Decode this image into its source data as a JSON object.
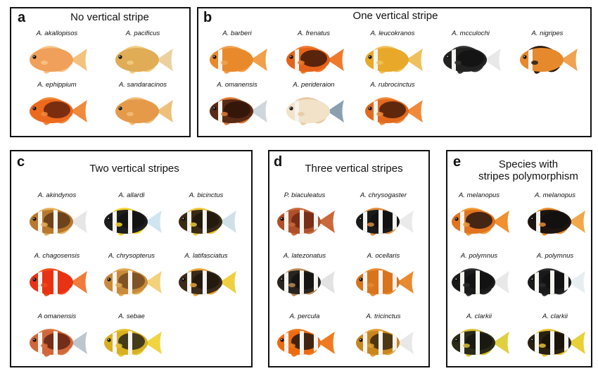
{
  "panels": [
    {
      "label": "a",
      "title": "No vertical stripe",
      "species": [
        {
          "name": "A. akallopisos",
          "body": "#f0a05a",
          "tail": "#f3c27c",
          "fins": "#f6c68a",
          "stripes": 0,
          "dark": ""
        },
        {
          "name": "A. pacificus",
          "body": "#e0ac55",
          "tail": "#ecd1a0",
          "fins": "#f0cf86",
          "stripes": 0,
          "dark": ""
        },
        {
          "name": "A. ephippium",
          "body": "#ec6a1e",
          "tail": "#f08a3c",
          "fins": "#f08a3c",
          "stripes": 0,
          "dark": "#5a1c0c"
        },
        {
          "name": "A. sandaracinos",
          "body": "#e59a4a",
          "tail": "#eec07c",
          "fins": "#f1be7a",
          "stripes": 0,
          "dark": ""
        }
      ]
    },
    {
      "label": "b",
      "title": "One vertical stripe",
      "species": [
        {
          "name": "A. barberi",
          "body": "#e88a2c",
          "tail": "#f0a04a",
          "fins": "#f3a24e",
          "stripes": 1,
          "dark": ""
        },
        {
          "name": "A. frenatus",
          "body": "#e5621a",
          "tail": "#f07a2a",
          "fins": "#f07a2a",
          "stripes": 1,
          "dark": "#331208"
        },
        {
          "name": "A. leucokranos",
          "body": "#e8a82a",
          "tail": "#efc05c",
          "fins": "#f0c35e",
          "stripes": 1,
          "dark": ""
        },
        {
          "name": "A. mcculochi",
          "body": "#222222",
          "tail": "#e8e8e8",
          "fins": "#333333",
          "stripes": 1,
          "dark": "#111111"
        },
        {
          "name": "A. nigripes",
          "body": "#e5892c",
          "tail": "#f0a24e",
          "fins": "#2a1a10",
          "stripes": 1,
          "dark": ""
        },
        {
          "name": "A. omanensis",
          "body": "#5a2a14",
          "tail": "#cfd6dc",
          "fins": "#e07a36",
          "stripes": 1,
          "dark": "#2a1208"
        },
        {
          "name": "A. perideraion",
          "body": "#f1e2c8",
          "tail": "#8aa0b0",
          "fins": "#e9c8a0",
          "stripes": 1,
          "dark": ""
        },
        {
          "name": "A. rubrocinctus",
          "body": "#e26a1e",
          "tail": "#f08a3a",
          "fins": "#f08a3a",
          "stripes": 1,
          "dark": "#3a1408"
        }
      ]
    },
    {
      "label": "c",
      "title": "Two vertical stripes",
      "species": [
        {
          "name": "A. akindynos",
          "body": "#b8782e",
          "tail": "#e6e6e6",
          "fins": "#e6b058",
          "stripes": 2,
          "dark": "#5a3416"
        },
        {
          "name": "A. allardi",
          "body": "#1e1e1e",
          "tail": "#cfe6f0",
          "fins": "#f2d22a",
          "stripes": 2,
          "dark": "#111111"
        },
        {
          "name": "A. bicinctus",
          "body": "#3a2a14",
          "tail": "#d0e0e8",
          "fins": "#eec636",
          "stripes": 2,
          "dark": "#1e160c"
        },
        {
          "name": "A. chagosensis",
          "body": "#e83214",
          "tail": "#f27a3a",
          "fins": "#f04a18",
          "stripes": 2,
          "dark": ""
        },
        {
          "name": "A. chrysopterus",
          "body": "#c98a3a",
          "tail": "#f2d27a",
          "fins": "#e0aa50",
          "stripes": 2,
          "dark": "#6a4420"
        },
        {
          "name": "A. latifasciatus",
          "body": "#3a2a1a",
          "tail": "#efcf40",
          "fins": "#e8a236",
          "stripes": 2,
          "dark": "#1e140a"
        },
        {
          "name": "A omanensis",
          "body": "#d2663a",
          "tail": "#bcc6cc",
          "fins": "#d7703c",
          "stripes": 2,
          "dark": "#5a1e10"
        },
        {
          "name": "A. sebae",
          "body": "#d8b020",
          "tail": "#f0d440",
          "fins": "#e8c030",
          "stripes": 2,
          "dark": "#1a1a1a"
        }
      ]
    },
    {
      "label": "d",
      "title": "Three vertical stripes",
      "species": [
        {
          "name": "P. biaculeatus",
          "body": "#b0502a",
          "tail": "#c9683a",
          "fins": "#c9683a",
          "stripes": 3,
          "dark": "#6a2412"
        },
        {
          "name": "A. chrysogaster",
          "body": "#1a1a1a",
          "tail": "#eaeaea",
          "fins": "#e08a3a",
          "stripes": 3,
          "dark": "#111111"
        },
        {
          "name": "A. latezonatus",
          "body": "#2a2420",
          "tail": "#e2e2e2",
          "fins": "#b88a54",
          "stripes": 3,
          "dark": "#111111"
        },
        {
          "name": "A. ocellaris",
          "body": "#d8741e",
          "tail": "#e88a30",
          "fins": "#e88a30",
          "stripes": 3,
          "dark": ""
        },
        {
          "name": "A. percula",
          "body": "#ee6a10",
          "tail": "#f07a20",
          "fins": "#f07a20",
          "stripes": 3,
          "dark": "#111111"
        },
        {
          "name": "A. tricinctus",
          "body": "#c8861e",
          "tail": "#e8e8e8",
          "fins": "#e0a036",
          "stripes": 3,
          "dark": "#2a2010"
        }
      ]
    },
    {
      "label": "e",
      "title_lines": [
        "Species with",
        "stripes polymorphism"
      ],
      "species": [
        {
          "name": "A. melanopus",
          "body": "#e07420",
          "tail": "#f0902e",
          "fins": "#f09a34",
          "stripes": 1,
          "dark": "#1a1010"
        },
        {
          "name": "A. melanopus",
          "body": "#1e1410",
          "tail": "#f0a84a",
          "fins": "#e88a2a",
          "stripes": 1,
          "dark": "#111111"
        },
        {
          "name": "A. polymnus",
          "body": "#1a1a1a",
          "tail": "#e8e8e8",
          "fins": "#2a2a2a",
          "stripes": 2,
          "dark": "#111111"
        },
        {
          "name": "A. polymnus",
          "body": "#1a1a1a",
          "tail": "#e6eef2",
          "fins": "#2a2a2a",
          "stripes": 3,
          "dark": "#111111"
        },
        {
          "name": "A. clarkii",
          "body": "#2a2a18",
          "tail": "#e0d040",
          "fins": "#d8c030",
          "stripes": 2,
          "dark": "#141410"
        },
        {
          "name": "A. clarkii",
          "body": "#2a2010",
          "tail": "#e8d038",
          "fins": "#e8c030",
          "stripes": 3,
          "dark": "#141008"
        }
      ]
    }
  ]
}
